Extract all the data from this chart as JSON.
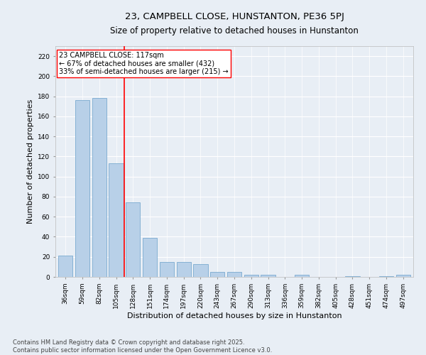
{
  "title": "23, CAMPBELL CLOSE, HUNSTANTON, PE36 5PJ",
  "subtitle": "Size of property relative to detached houses in Hunstanton",
  "xlabel": "Distribution of detached houses by size in Hunstanton",
  "ylabel": "Number of detached properties",
  "categories": [
    "36sqm",
    "59sqm",
    "82sqm",
    "105sqm",
    "128sqm",
    "151sqm",
    "174sqm",
    "197sqm",
    "220sqm",
    "243sqm",
    "267sqm",
    "290sqm",
    "313sqm",
    "336sqm",
    "359sqm",
    "382sqm",
    "405sqm",
    "428sqm",
    "451sqm",
    "474sqm",
    "497sqm"
  ],
  "values": [
    21,
    176,
    178,
    113,
    74,
    39,
    15,
    15,
    13,
    5,
    5,
    2,
    2,
    0,
    2,
    0,
    0,
    1,
    0,
    1,
    2
  ],
  "bar_color": "#b8d0e8",
  "bar_edge_color": "#7aaacf",
  "vline_x_index": 3.5,
  "vline_color": "red",
  "annotation_text": "23 CAMPBELL CLOSE: 117sqm\n← 67% of detached houses are smaller (432)\n33% of semi-detached houses are larger (215) →",
  "annotation_box_color": "white",
  "annotation_box_edge_color": "red",
  "ylim": [
    0,
    230
  ],
  "yticks": [
    0,
    20,
    40,
    60,
    80,
    100,
    120,
    140,
    160,
    180,
    200,
    220
  ],
  "bg_color": "#e8eef5",
  "plot_bg_color": "#e8eef5",
  "grid_color": "white",
  "footer_text": "Contains HM Land Registry data © Crown copyright and database right 2025.\nContains public sector information licensed under the Open Government Licence v3.0.",
  "title_fontsize": 9.5,
  "label_fontsize": 8,
  "tick_fontsize": 6.5,
  "footer_fontsize": 6,
  "annotation_fontsize": 7
}
